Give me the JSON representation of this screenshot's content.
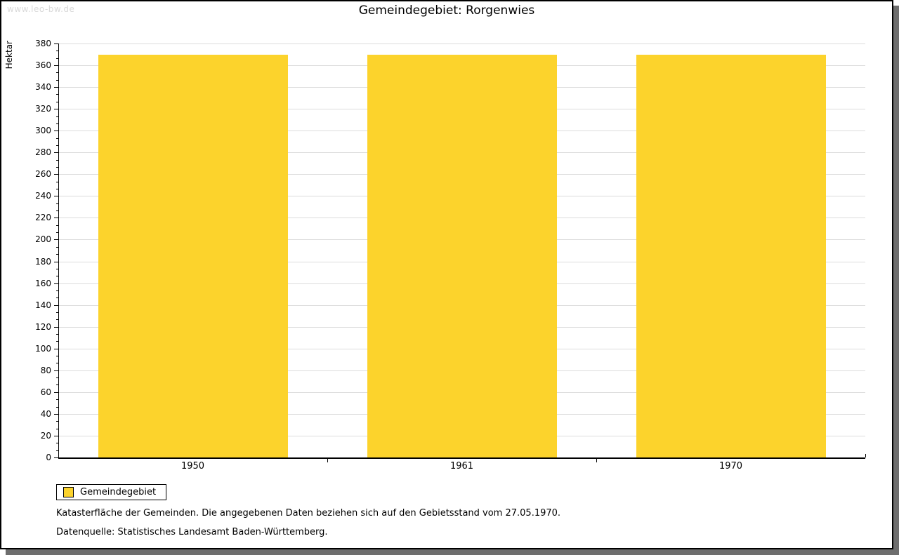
{
  "watermark": "www.leo-bw.de",
  "title": "Gemeindegebiet: Rorgenwies",
  "chart_data": {
    "type": "bar",
    "title": "Gemeindegebiet: Rorgenwies",
    "categories": [
      "1950",
      "1961",
      "1970"
    ],
    "series": [
      {
        "name": "Gemeindegebiet",
        "values": [
          370,
          370,
          370
        ]
      }
    ],
    "bar_color": "#FCD32C",
    "ylabel": "Hektar",
    "xlabel": "",
    "ylim": [
      0,
      380
    ],
    "ytick_interval": 20,
    "minor_ticks_per_interval": 2,
    "grid": true,
    "gridline_color": "#dcdcdc",
    "legend": {
      "label": "Gemeindegebiet",
      "swatch_color": "#FCD32C",
      "position": "bottom-left"
    }
  },
  "footnotes": {
    "line1": "Katasterfläche der Gemeinden. Die angegebenen Daten beziehen sich auf den Gebietsstand vom 27.05.1970.",
    "line2": "Datenquelle: Statistisches Landesamt Baden-Württemberg."
  }
}
